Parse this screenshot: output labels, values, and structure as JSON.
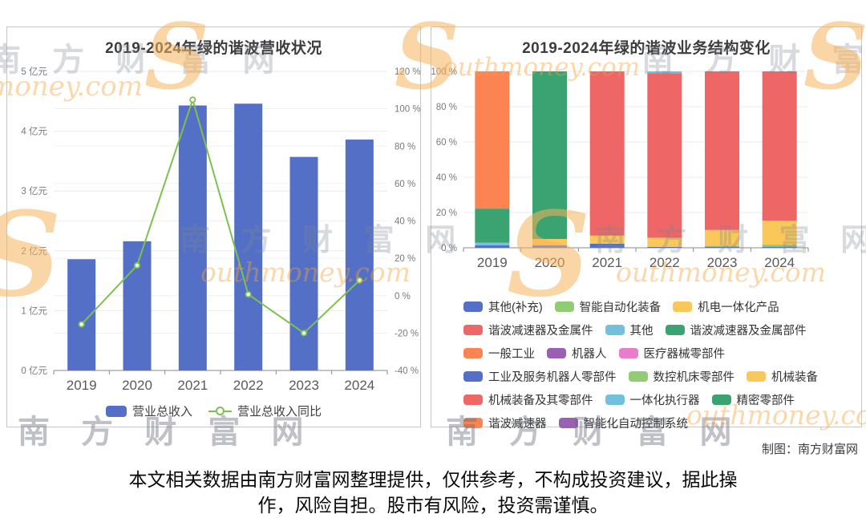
{
  "page": {
    "credit": "制图：南方财富网",
    "disclaimer": [
      "本文相关数据由南方财富网整理提供，仅供参考，不构成投资建议，据此操",
      "作，风险自担。股市有风险，投资需谨慎。"
    ],
    "watermarks": {
      "cn": "南方财富网",
      "en": "outhmoney.com",
      "en2": "money.com",
      "s": "S"
    }
  },
  "chart_data": [
    {
      "type": "bar",
      "title": "2019-2024年绿的谐波营收状况",
      "categories": [
        "2019",
        "2020",
        "2021",
        "2022",
        "2023",
        "2024"
      ],
      "series": [
        {
          "name": "营业总收入",
          "type": "bar",
          "unit": "亿元",
          "color": "#5470C6",
          "values": [
            1.86,
            2.16,
            4.43,
            4.46,
            3.57,
            3.86
          ]
        },
        {
          "name": "营业总收入同比",
          "type": "line",
          "unit": "%",
          "color": "#7EC050",
          "values": [
            -15.3,
            16.2,
            104.8,
            0.7,
            -20.0,
            8.2
          ]
        }
      ],
      "left_axis": {
        "ticks": [
          "0 亿元",
          "1 亿元",
          "2 亿元",
          "3 亿元",
          "4 亿元",
          "5 亿元"
        ],
        "min": 0,
        "max": 5
      },
      "right_axis": {
        "ticks": [
          "-40 %",
          "-20 %",
          "0 %",
          "20 %",
          "40 %",
          "60 %",
          "80 %",
          "100 %",
          "120 %"
        ],
        "min": -40,
        "max": 120
      },
      "grid": true,
      "legend_position": "bottom"
    },
    {
      "type": "bar",
      "subtype": "stacked-percent",
      "title": "2019-2024年绿的谐波业务结构变化",
      "categories": [
        "2019",
        "2020",
        "2021",
        "2022",
        "2023",
        "2024"
      ],
      "y_axis": {
        "ticks": [
          "0 %",
          "20 %",
          "40 %",
          "60 %",
          "80 %",
          "100 %"
        ],
        "min": 0,
        "max": 100
      },
      "grid": true,
      "legend_position": "bottom",
      "legend": [
        {
          "label": "其他(补充)",
          "color": "#5470C6"
        },
        {
          "label": "智能自动化装备",
          "color": "#91CC75"
        },
        {
          "label": "机电一体化产品",
          "color": "#FAC858"
        },
        {
          "label": "谐波减速器及金属件",
          "color": "#EE6666"
        },
        {
          "label": "其他",
          "color": "#73C0DE"
        },
        {
          "label": "谐波减速器及金属部件",
          "color": "#3BA272"
        },
        {
          "label": "一般工业",
          "color": "#FC8452"
        },
        {
          "label": "机器人",
          "color": "#9A60B4"
        },
        {
          "label": "医疗器械零部件",
          "color": "#EA7CCC"
        },
        {
          "label": "工业及服务机器人零部件",
          "color": "#5470C6"
        },
        {
          "label": "数控机床零部件",
          "color": "#91CC75"
        },
        {
          "label": "机械装备",
          "color": "#FAC858"
        },
        {
          "label": "机械装备及其零部件",
          "color": "#EE6666"
        },
        {
          "label": "一体化执行器",
          "color": "#73C0DE"
        },
        {
          "label": "精密零部件",
          "color": "#3BA272"
        },
        {
          "label": "谐波减速器",
          "color": "#FC8452"
        },
        {
          "label": "智能化自动控制系统",
          "color": "#9A60B4"
        }
      ],
      "bars": [
        {
          "year": "2019",
          "segments": [
            {
              "name": "其他(补充)",
              "value": 1.4,
              "color": "#5470C6"
            },
            {
              "name": "一体化执行器",
              "value": 1.5,
              "color": "#73C0DE"
            },
            {
              "name": "精密零部件",
              "value": 19.3,
              "color": "#3BA272"
            },
            {
              "name": "谐波减速器",
              "value": 77.8,
              "color": "#FC8452"
            }
          ]
        },
        {
          "year": "2020",
          "segments": [
            {
              "name": "其他(补充)",
              "value": 1.4,
              "color": "#5470C6"
            },
            {
              "name": "机电一体化产品",
              "value": 3.6,
              "color": "#FAC858"
            },
            {
              "name": "谐波减速器及金属部件",
              "value": 95.0,
              "color": "#3BA272"
            }
          ]
        },
        {
          "year": "2021",
          "segments": [
            {
              "name": "其他(补充)",
              "value": 2.3,
              "color": "#5470C6"
            },
            {
              "name": "机电一体化产品",
              "value": 4.6,
              "color": "#FAC858"
            },
            {
              "name": "谐波减速器及金属件",
              "value": 93.1,
              "color": "#EE6666"
            }
          ]
        },
        {
          "year": "2022",
          "segments": [
            {
              "name": "其他(补充)",
              "value": 0.5,
              "color": "#5470C6"
            },
            {
              "name": "机电一体化产品",
              "value": 5.2,
              "color": "#FAC858"
            },
            {
              "name": "谐波减速器及金属件",
              "value": 93.3,
              "color": "#EE6666"
            },
            {
              "name": "其他",
              "value": 1.0,
              "color": "#73C0DE"
            }
          ]
        },
        {
          "year": "2023",
          "segments": [
            {
              "name": "其他(补充)",
              "value": 0.6,
              "color": "#5470C6"
            },
            {
              "name": "智能自动化装备",
              "value": 0.5,
              "color": "#91CC75"
            },
            {
              "name": "机电一体化产品",
              "value": 9.0,
              "color": "#FAC858"
            },
            {
              "name": "谐波减速器及金属件",
              "value": 89.9,
              "color": "#EE6666"
            }
          ]
        },
        {
          "year": "2024",
          "segments": [
            {
              "name": "其他(补充)",
              "value": 0.6,
              "color": "#5470C6"
            },
            {
              "name": "智能自动化装备",
              "value": 1.2,
              "color": "#91CC75"
            },
            {
              "name": "机电一体化产品",
              "value": 13.5,
              "color": "#FAC858"
            },
            {
              "name": "谐波减速器及金属件",
              "value": 84.7,
              "color": "#EE6666"
            }
          ]
        }
      ]
    }
  ]
}
